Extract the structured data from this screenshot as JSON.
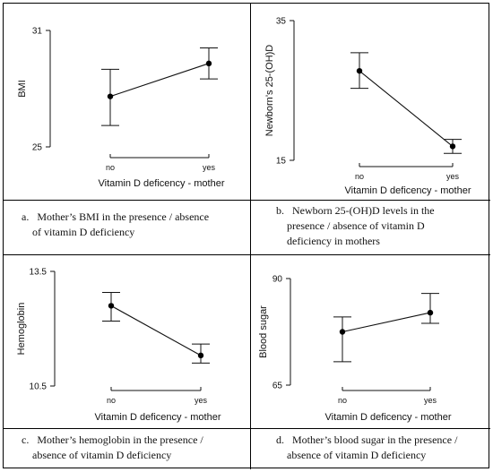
{
  "chart_data": [
    {
      "type": "line",
      "panel": "a",
      "categories": [
        "no",
        "yes"
      ],
      "series": [
        {
          "values": [
            27.6,
            29.3
          ],
          "error_low": [
            26.1,
            28.5
          ],
          "error_high": [
            29.0,
            30.1
          ]
        }
      ],
      "xlabel": "Vitamin D deficency - mother",
      "ylabel": "BMI",
      "ylim": [
        25,
        31
      ],
      "yticks": [
        "25",
        "31"
      ],
      "grid": false
    },
    {
      "type": "line",
      "panel": "b",
      "categories": [
        "no",
        "yes"
      ],
      "series": [
        {
          "values": [
            27.8,
            17.0
          ],
          "error_low": [
            25.3,
            16.0
          ],
          "error_high": [
            30.4,
            18.0
          ]
        }
      ],
      "xlabel": "Vitamin D deficency - mother",
      "ylabel": "Newborn’s 25-(OH)D",
      "ylim": [
        15,
        35
      ],
      "yticks": [
        "15",
        "35"
      ],
      "grid": false
    },
    {
      "type": "line",
      "panel": "c",
      "categories": [
        "no",
        "yes"
      ],
      "series": [
        {
          "values": [
            12.6,
            11.3
          ],
          "error_low": [
            12.2,
            11.1
          ],
          "error_high": [
            12.95,
            11.6
          ]
        }
      ],
      "xlabel": "Vitamin D deficency - mother",
      "ylabel": "Hemoglobin",
      "ylim": [
        10.5,
        13.5
      ],
      "yticks": [
        "10.5",
        "13.5"
      ],
      "grid": false
    },
    {
      "type": "line",
      "panel": "d",
      "categories": [
        "no",
        "yes"
      ],
      "series": [
        {
          "values": [
            77.5,
            82.0
          ],
          "error_low": [
            70.5,
            79.5
          ],
          "error_high": [
            81.0,
            86.5
          ]
        }
      ],
      "xlabel": "Vitamin D deficency - mother",
      "ylabel": "Blood sugar",
      "ylim": [
        65,
        90
      ],
      "yticks": [
        "65",
        "90"
      ],
      "grid": false
    }
  ],
  "captions": {
    "a": {
      "label": "a.",
      "line1": "Mother’s BMI in the presence / absence",
      "line2": "of vitamin D deficiency"
    },
    "b": {
      "label": "b.",
      "line1": "Newborn 25-(OH)D levels in the",
      "line2": "presence / absence of vitamin D",
      "line3": "deficiency in mothers"
    },
    "c": {
      "label": "c.",
      "line1": "Mother’s hemoglobin in the presence /",
      "line2": "absence of vitamin D deficiency"
    },
    "d": {
      "label": "d.",
      "line1": "Mother’s blood sugar in the presence /",
      "line2": "absence of vitamin D deficiency"
    }
  }
}
